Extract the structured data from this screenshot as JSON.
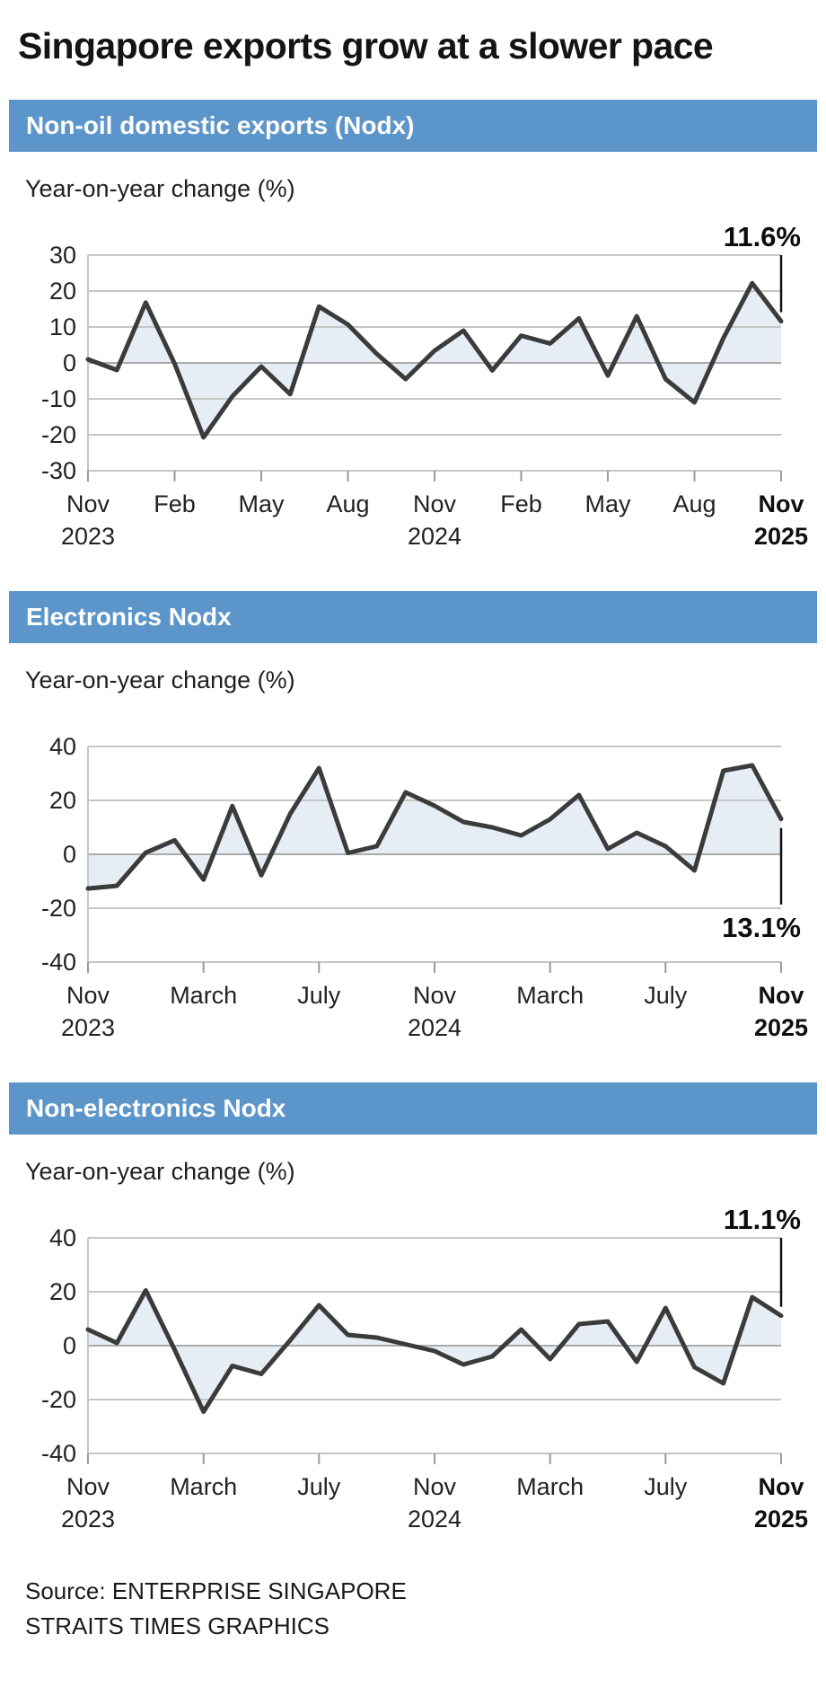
{
  "page": {
    "title": "Singapore exports grow at a slower pace",
    "source_line1": "Source: ENTERPRISE SINGAPORE",
    "source_line2": "STRAITS TIMES GRAPHICS"
  },
  "colors": {
    "header_bg": "#5C95CA",
    "line": "#3B3B3B",
    "area_fill": "#E6EDF5",
    "grid": "#C6C6C6",
    "grid_zero": "#ABABAB",
    "axis": "#9A9A9A",
    "annotation": "#111111",
    "text": "#1A1A1A"
  },
  "chart_data": [
    {
      "type": "line",
      "title": "Non-oil domestic exports (Nodx)",
      "ylabel": "Year-on-year change (%)",
      "grid": true,
      "area": "fill-to-zero",
      "ylim": [
        -30,
        30
      ],
      "yticks": [
        30,
        20,
        10,
        0,
        -10,
        -20,
        -30
      ],
      "x": [
        "Nov 2023",
        "Dec 2023",
        "Jan 2024",
        "Feb 2024",
        "Mar 2024",
        "Apr 2024",
        "May 2024",
        "Jun 2024",
        "Jul 2024",
        "Aug 2024",
        "Sep 2024",
        "Oct 2024",
        "Nov 2024",
        "Dec 2024",
        "Jan 2025",
        "Feb 2025",
        "Mar 2025",
        "Apr 2025",
        "May 2025",
        "Jun 2025",
        "Jul 2025",
        "Aug 2025",
        "Sep 2025",
        "Oct 2025",
        "Nov 2025"
      ],
      "values": [
        1.0,
        -2.0,
        16.8,
        -0.2,
        -20.7,
        -9.3,
        -1.0,
        -8.7,
        15.7,
        10.7,
        2.5,
        -4.5,
        3.4,
        9.0,
        -2.1,
        7.6,
        5.4,
        12.4,
        -3.5,
        13.0,
        -4.5,
        -11.0,
        6.9,
        22.2,
        11.6
      ],
      "xticks": [
        {
          "index": 0,
          "line1": "Nov",
          "line2": "2023",
          "bold": false
        },
        {
          "index": 3,
          "line1": "Feb",
          "bold": false
        },
        {
          "index": 6,
          "line1": "May",
          "bold": false
        },
        {
          "index": 9,
          "line1": "Aug",
          "bold": false
        },
        {
          "index": 12,
          "line1": "Nov",
          "line2": "2024",
          "bold": false
        },
        {
          "index": 15,
          "line1": "Feb",
          "bold": false
        },
        {
          "index": 18,
          "line1": "May",
          "bold": false
        },
        {
          "index": 21,
          "line1": "Aug",
          "bold": false
        },
        {
          "index": 24,
          "line1": "Nov",
          "line2": "2025",
          "bold": true
        }
      ],
      "annotation": {
        "text": "11.6%",
        "placement": "above"
      }
    },
    {
      "type": "line",
      "title": "Electronics Nodx",
      "ylabel": "Year-on-year change (%)",
      "grid": true,
      "area": "fill-to-zero",
      "ylim": [
        -40,
        40
      ],
      "yticks": [
        40,
        20,
        0,
        -20,
        -40
      ],
      "x": [
        "Nov 2023",
        "Dec 2023",
        "Jan 2024",
        "Feb 2024",
        "Mar 2024",
        "Apr 2024",
        "May 2024",
        "Jun 2024",
        "Jul 2024",
        "Aug 2024",
        "Sep 2024",
        "Oct 2024",
        "Nov 2024",
        "Dec 2024",
        "Jan 2025",
        "Feb 2025",
        "Mar 2025",
        "Apr 2025",
        "May 2025",
        "Jun 2025",
        "Jul 2025",
        "Aug 2025",
        "Sep 2025",
        "Oct 2025",
        "Nov 2025"
      ],
      "values": [
        -12.7,
        -11.7,
        0.6,
        5.2,
        -9.4,
        17.9,
        -7.8,
        15.0,
        32.0,
        0.5,
        3.0,
        23.0,
        18.0,
        12.0,
        10.0,
        7.0,
        13.0,
        22.0,
        2.0,
        8.0,
        3.0,
        -6.0,
        31.0,
        33.0,
        13.1
      ],
      "xticks": [
        {
          "index": 0,
          "line1": "Nov",
          "line2": "2023",
          "bold": false
        },
        {
          "index": 4,
          "line1": "March",
          "bold": false
        },
        {
          "index": 8,
          "line1": "July",
          "bold": false
        },
        {
          "index": 12,
          "line1": "Nov",
          "line2": "2024",
          "bold": false
        },
        {
          "index": 16,
          "line1": "March",
          "bold": false
        },
        {
          "index": 20,
          "line1": "July",
          "bold": false
        },
        {
          "index": 24,
          "line1": "Nov",
          "line2": "2025",
          "bold": true
        }
      ],
      "annotation": {
        "text": "13.1%",
        "placement": "below"
      }
    },
    {
      "type": "line",
      "title": "Non-electronics Nodx",
      "ylabel": "Year-on-year change (%)",
      "grid": true,
      "area": "fill-to-zero",
      "ylim": [
        -40,
        40
      ],
      "yticks": [
        40,
        20,
        0,
        -20,
        -40
      ],
      "x": [
        "Nov 2023",
        "Dec 2023",
        "Jan 2024",
        "Feb 2024",
        "Mar 2024",
        "Apr 2024",
        "May 2024",
        "Jun 2024",
        "Jul 2024",
        "Aug 2024",
        "Sep 2024",
        "Oct 2024",
        "Nov 2024",
        "Dec 2024",
        "Jan 2025",
        "Feb 2025",
        "Mar 2025",
        "Apr 2025",
        "May 2025",
        "Jun 2025",
        "Jul 2025",
        "Aug 2025",
        "Sep 2025",
        "Oct 2025",
        "Nov 2025"
      ],
      "values": [
        6.0,
        1.0,
        20.5,
        -1.5,
        -24.5,
        -7.5,
        -10.5,
        2.0,
        15.0,
        4.0,
        3.0,
        0.5,
        -2.0,
        -7.0,
        -4.0,
        6.0,
        -5.0,
        8.0,
        9.0,
        -6.0,
        14.0,
        -8.0,
        -14.0,
        18.0,
        11.1
      ],
      "xticks": [
        {
          "index": 0,
          "line1": "Nov",
          "line2": "2023",
          "bold": false
        },
        {
          "index": 4,
          "line1": "March",
          "bold": false
        },
        {
          "index": 8,
          "line1": "July",
          "bold": false
        },
        {
          "index": 12,
          "line1": "Nov",
          "line2": "2024",
          "bold": false
        },
        {
          "index": 16,
          "line1": "March",
          "bold": false
        },
        {
          "index": 20,
          "line1": "July",
          "bold": false
        },
        {
          "index": 24,
          "line1": "Nov",
          "line2": "2025",
          "bold": true
        }
      ],
      "annotation": {
        "text": "11.1%",
        "placement": "above"
      }
    }
  ]
}
